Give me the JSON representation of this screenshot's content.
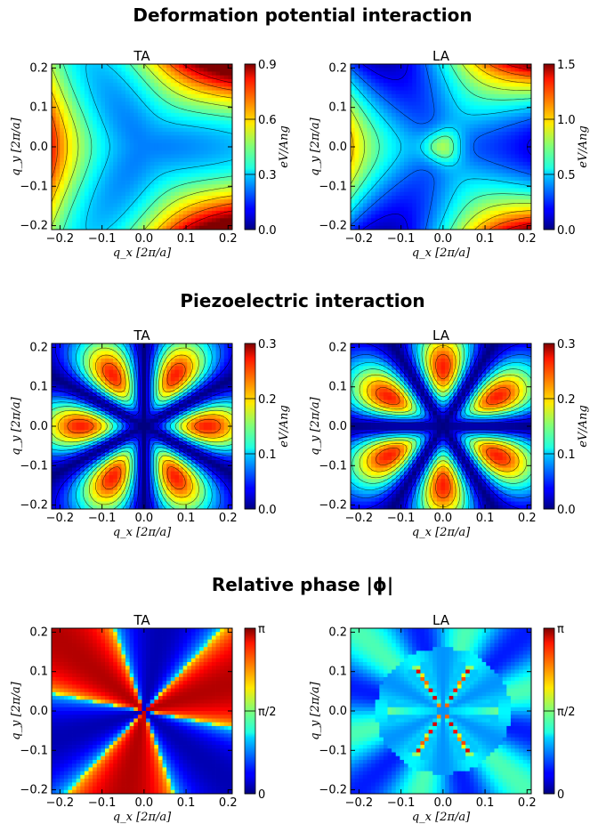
{
  "chart_data": [
    {
      "type": "heatmap",
      "section_title": "Deformation potential interaction",
      "title": "TA",
      "xlabel": "q_x [2π/a]",
      "ylabel": "q_y [2π/a]",
      "xlim": [
        -0.22,
        0.21
      ],
      "ylim": [
        -0.21,
        0.21
      ],
      "x_ticks": [
        "−0.2",
        "−0.1",
        "0.0",
        "0.1",
        "0.2"
      ],
      "y_ticks": [
        "0.2",
        "0.1",
        "0.0",
        "−0.1",
        "−0.2"
      ],
      "colorbar": {
        "label": "eV/Ang",
        "min": 0.0,
        "max": 0.9,
        "ticks": [
          "0.0",
          "0.3",
          "0.6",
          "0.9"
        ]
      },
      "colormap": "jet",
      "contour_lines": true
    },
    {
      "type": "heatmap",
      "section_title": "Deformation potential interaction",
      "title": "LA",
      "xlabel": "q_x [2π/a]",
      "ylabel": "q_y [2π/a]",
      "xlim": [
        -0.22,
        0.21
      ],
      "ylim": [
        -0.21,
        0.21
      ],
      "x_ticks": [
        "−0.2",
        "−0.1",
        "0.0",
        "0.1",
        "0.2"
      ],
      "y_ticks": [
        "0.2",
        "0.1",
        "0.0",
        "−0.1",
        "−0.2"
      ],
      "colorbar": {
        "label": "eV/Ang",
        "min": 0.0,
        "max": 1.5,
        "ticks": [
          "0.0",
          "0.5",
          "1.0",
          "1.5"
        ]
      },
      "colormap": "jet",
      "contour_lines": true
    },
    {
      "type": "heatmap",
      "section_title": "Piezoelectric interaction",
      "title": "TA",
      "xlabel": "q_x [2π/a]",
      "ylabel": "q_y [2π/a]",
      "xlim": [
        -0.22,
        0.21
      ],
      "ylim": [
        -0.21,
        0.21
      ],
      "x_ticks": [
        "−0.2",
        "−0.1",
        "0.0",
        "0.1",
        "0.2"
      ],
      "y_ticks": [
        "0.2",
        "0.1",
        "0.0",
        "−0.1",
        "−0.2"
      ],
      "colorbar": {
        "label": "eV/Ang",
        "min": 0.0,
        "max": 0.3,
        "ticks": [
          "0.0",
          "0.1",
          "0.2",
          "0.3"
        ]
      },
      "colormap": "jet",
      "contour_lines": true
    },
    {
      "type": "heatmap",
      "section_title": "Piezoelectric interaction",
      "title": "LA",
      "xlabel": "q_x [2π/a]",
      "ylabel": "q_y [2π/a]",
      "xlim": [
        -0.22,
        0.21
      ],
      "ylim": [
        -0.21,
        0.21
      ],
      "x_ticks": [
        "−0.2",
        "−0.1",
        "0.0",
        "0.1",
        "0.2"
      ],
      "y_ticks": [
        "0.2",
        "0.1",
        "0.0",
        "−0.1",
        "−0.2"
      ],
      "colorbar": {
        "label": "eV/Ang",
        "min": 0.0,
        "max": 0.3,
        "ticks": [
          "0.0",
          "0.1",
          "0.2",
          "0.3"
        ]
      },
      "colormap": "jet",
      "contour_lines": true
    },
    {
      "type": "heatmap",
      "section_title": "Relative phase |φ|",
      "title": "TA",
      "xlabel": "q_x [2π/a]",
      "ylabel": "q_y [2π/a]",
      "xlim": [
        -0.22,
        0.21
      ],
      "ylim": [
        -0.21,
        0.21
      ],
      "x_ticks": [
        "−0.2",
        "−0.1",
        "0.0",
        "0.1",
        "0.2"
      ],
      "y_ticks": [
        "0.2",
        "0.1",
        "0.0",
        "−0.1",
        "−0.2"
      ],
      "colorbar": {
        "label": "",
        "min": 0,
        "max": 3.14159,
        "ticks": [
          "0",
          "π/2",
          "π"
        ]
      },
      "colormap": "jet",
      "contour_lines": false
    },
    {
      "type": "heatmap",
      "section_title": "Relative phase |φ|",
      "title": "LA",
      "xlabel": "q_x [2π/a]",
      "ylabel": "q_y [2π/a]",
      "xlim": [
        -0.22,
        0.21
      ],
      "ylim": [
        -0.21,
        0.21
      ],
      "x_ticks": [
        "−0.2",
        "−0.1",
        "0.0",
        "0.1",
        "0.2"
      ],
      "y_ticks": [
        "0.2",
        "0.1",
        "0.0",
        "−0.1",
        "−0.2"
      ],
      "colorbar": {
        "label": "",
        "min": 0,
        "max": 3.14159,
        "ticks": [
          "0",
          "π/2",
          "π"
        ]
      },
      "colormap": "jet",
      "contour_lines": false
    }
  ],
  "sections": [
    {
      "title": "Deformation potential interaction"
    },
    {
      "title": "Piezoelectric interaction"
    },
    {
      "title": "Relative phase |ϕ|"
    }
  ]
}
